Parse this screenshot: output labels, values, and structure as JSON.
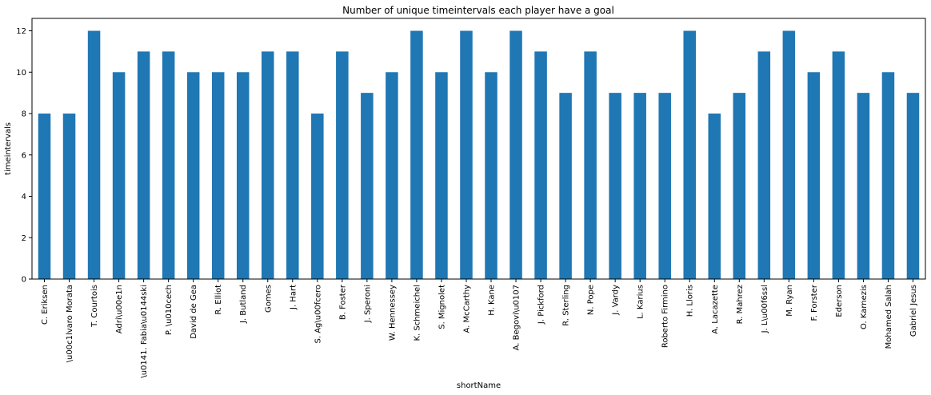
{
  "chart_data": {
    "type": "bar",
    "title": "Number of unique timeintervals each player have a goal",
    "xlabel": "shortName",
    "ylabel": "timeintervals",
    "ylim": [
      0,
      12.6
    ],
    "yticks": [
      0,
      2,
      4,
      6,
      8,
      10,
      12
    ],
    "grid": false,
    "legend": "none",
    "bar_color": "#1f77b4",
    "categories": [
      "C. Eriksen",
      "\\u00c1lvaro Morata",
      "T. Courtois",
      "Adri\\u00e1n",
      "\\u0141. Fabia\\u0144ski",
      "P. \\u010cech",
      "David de Gea",
      "R. Elliot",
      "J. Butland",
      "Gomes",
      "J. Hart",
      "S. Ag\\u00fcero",
      "B. Foster",
      "J. Speroni",
      "W. Hennessey",
      "K. Schmeichel",
      "S. Mignolet",
      "A. McCarthy",
      "H. Kane",
      "A. Begovi\\u0107",
      "J. Pickford",
      "R. Sterling",
      "N. Pope",
      "J. Vardy",
      "L. Karius",
      "Roberto Firmino",
      "H. Lloris",
      "A. Lacazette",
      "R. Mahrez",
      "J. L\\u00f6ssl",
      "M. Ryan",
      "F. Forster",
      "Ederson",
      "O. Karnezis",
      "Mohamed Salah",
      "Gabriel Jesus"
    ],
    "values": [
      8,
      8,
      12,
      10,
      11,
      11,
      10,
      10,
      10,
      11,
      11,
      8,
      11,
      9,
      10,
      12,
      10,
      12,
      10,
      12,
      11,
      9,
      11,
      9,
      9,
      9,
      12,
      8,
      9,
      11,
      12,
      10,
      11,
      9,
      10,
      9
    ]
  }
}
